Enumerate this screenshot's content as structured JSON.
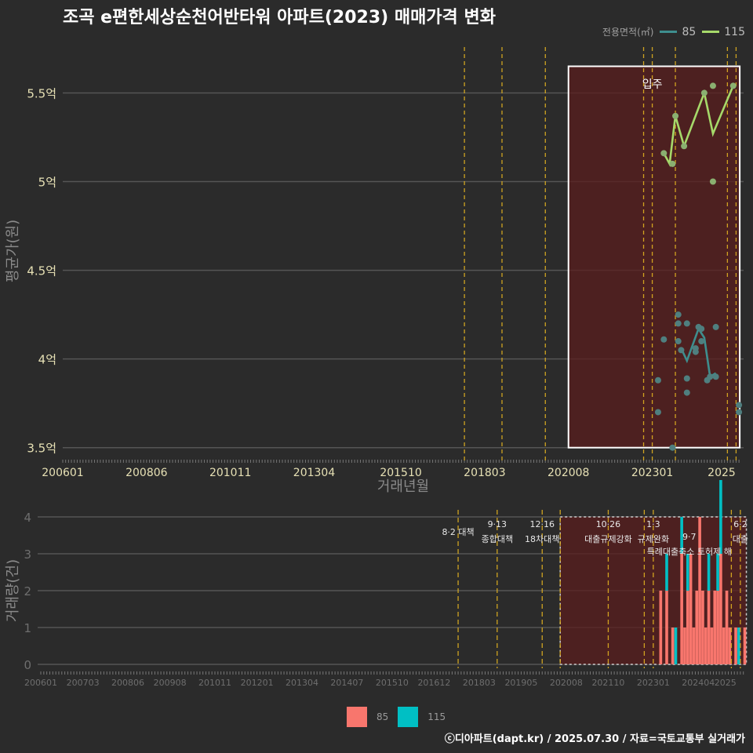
{
  "title": "조곡 e편한세상순천어반타워 아파트(2023) 매매가격 변화",
  "footer": "ⓒ디아파트(dapt.kr) / 2025.07.30 / 자료=국토교통부 실거래가",
  "colors": {
    "background": "#2b2b2b",
    "grid": "#555555",
    "tick_text_top": "#e6e0b4",
    "tick_text_bottom": "#6e6e6e",
    "axis_title": "#8a8a8a",
    "policy_line": "#e0b020",
    "shade": "#5a1e1e",
    "s85_line": "#3e8e8e",
    "s115_line": "#a6d96a",
    "s85_point": "#4f7f7f",
    "s115_point": "#8ab070",
    "bar85": "#f8766d",
    "bar115": "#00bfc4"
  },
  "chart_data": [
    {
      "type": "line",
      "name": "price",
      "xlabel": "거래년월",
      "ylabel": "평균가(원)",
      "xlim": [
        "2006-01",
        "2025-07"
      ],
      "ylim": [
        3.45,
        5.67
      ],
      "xticks": [
        "200601",
        "200806",
        "201011",
        "201304",
        "201510",
        "201803",
        "202008",
        "202301",
        "2025"
      ],
      "yticks": [
        3.5,
        4.0,
        4.5,
        5.0,
        5.5
      ],
      "ytick_labels": [
        "3.5억",
        "4억",
        "4.5억",
        "5억",
        "5.5억"
      ],
      "legend_title": "전용면적(㎡)",
      "legend_position": "top-right",
      "policy_lines": [
        "2017-08",
        "2018-09",
        "2019-12",
        "2022-10",
        "2023-01",
        "2023-09",
        "2025-03",
        "2025-06"
      ],
      "shade_box": {
        "x": [
          "2020-08",
          "2025-07"
        ],
        "y": [
          3.5,
          5.65
        ]
      },
      "annotation": {
        "text": "입주",
        "x": "2023-01",
        "y": 5.52
      },
      "series": [
        {
          "name": "115",
          "line": [
            [
              "2023-05",
              5.16
            ],
            [
              "2023-07",
              5.1
            ],
            [
              "2023-09",
              5.37
            ],
            [
              "2023-12",
              5.2
            ],
            [
              "2024-07",
              5.5
            ],
            [
              "2024-10",
              5.27
            ],
            [
              "2025-05",
              5.54
            ]
          ],
          "points": [
            [
              "2023-05",
              5.16
            ],
            [
              "2023-08",
              5.1
            ],
            [
              "2023-09",
              5.37
            ],
            [
              "2023-12",
              5.2
            ],
            [
              "2024-07",
              5.5
            ],
            [
              "2024-10",
              5.54
            ],
            [
              "2024-10",
              5.0
            ],
            [
              "2025-05",
              5.54
            ]
          ]
        },
        {
          "name": "85",
          "line": [
            [
              "2023-11",
              4.06
            ],
            [
              "2024-01",
              3.99
            ],
            [
              "2024-05",
              4.17
            ],
            [
              "2024-07",
              4.12
            ],
            [
              "2024-09",
              3.9
            ],
            [
              "2024-11",
              3.92
            ]
          ],
          "points": [
            [
              "2023-03",
              3.88
            ],
            [
              "2023-03",
              3.7
            ],
            [
              "2023-05",
              4.11
            ],
            [
              "2023-08",
              3.5
            ],
            [
              "2023-10",
              4.25
            ],
            [
              "2023-10",
              4.2
            ],
            [
              "2023-10",
              4.1
            ],
            [
              "2023-11",
              4.05
            ],
            [
              "2024-01",
              4.2
            ],
            [
              "2024-01",
              3.89
            ],
            [
              "2024-01",
              3.81
            ],
            [
              "2024-04",
              4.06
            ],
            [
              "2024-04",
              4.04
            ],
            [
              "2024-05",
              4.18
            ],
            [
              "2024-06",
              4.17
            ],
            [
              "2024-06",
              4.1
            ],
            [
              "2024-08",
              3.88
            ],
            [
              "2024-09",
              3.9
            ],
            [
              "2024-11",
              3.9
            ],
            [
              "2024-11",
              4.18
            ],
            [
              "2025-07",
              3.7
            ],
            [
              "2025-07",
              3.74
            ]
          ]
        }
      ]
    },
    {
      "type": "bar",
      "name": "volume",
      "xlabel": "",
      "ylabel": "거래량(건)",
      "xlim": [
        "2006-01",
        "2025-07"
      ],
      "ylim": [
        0,
        4
      ],
      "yticks": [
        0,
        1,
        2,
        3,
        4
      ],
      "xticks": [
        "200601",
        "200703",
        "200806",
        "200908",
        "201011",
        "201201",
        "201304",
        "201407",
        "201510",
        "201612",
        "201803",
        "201905",
        "202008",
        "202110",
        "202301",
        "202404",
        "2025"
      ],
      "policy_lines": [
        "2017-08",
        "2018-09",
        "2019-12",
        "2020-06",
        "2021-10",
        "2022-10",
        "2023-01",
        "2025-03",
        "2025-06"
      ],
      "shade_box": {
        "x": [
          "2020-06",
          "2025-07"
        ],
        "y": [
          0,
          4
        ]
      },
      "policy_labels": [
        {
          "date": "2017-08",
          "line1": "",
          "line2": "8·2 대책"
        },
        {
          "date": "2018-09",
          "line1": "9·13",
          "line2": "종합대책"
        },
        {
          "date": "2019-12",
          "line1": "12·16",
          "line2": "18차대책"
        },
        {
          "date": "2021-10",
          "line1": "10·26",
          "line2": "대출규제강화"
        },
        {
          "date": "2023-01",
          "line1": "1·3",
          "line2": "규제완화"
        },
        {
          "date": "2024-01",
          "line1": "",
          "line2": "9·7"
        },
        {
          "date": "2024-01",
          "line1": "",
          "line2": "특례대출축소 토허제 해"
        },
        {
          "date": "2025-06",
          "line1": "6·2",
          "line2": "대출"
        }
      ],
      "series": [
        {
          "name": "85",
          "bars": [
            [
              "2023-03",
              2
            ],
            [
              "2023-05",
              2
            ],
            [
              "2023-07",
              1
            ],
            [
              "2023-10",
              3
            ],
            [
              "2023-11",
              1
            ],
            [
              "2023-12",
              2
            ],
            [
              "2024-01",
              3
            ],
            [
              "2024-02",
              1
            ],
            [
              "2024-03",
              2
            ],
            [
              "2024-04",
              4
            ],
            [
              "2024-05",
              2
            ],
            [
              "2024-06",
              1
            ],
            [
              "2024-07",
              2
            ],
            [
              "2024-08",
              1
            ],
            [
              "2024-09",
              2
            ],
            [
              "2024-10",
              2
            ],
            [
              "2024-11",
              3
            ],
            [
              "2024-12",
              1
            ],
            [
              "2025-01",
              2
            ],
            [
              "2025-02",
              1
            ],
            [
              "2025-04",
              1
            ],
            [
              "2025-07",
              1
            ]
          ]
        },
        {
          "name": "115",
          "bars": [
            [
              "2023-05",
              1
            ],
            [
              "2023-08",
              1
            ],
            [
              "2023-10",
              1
            ],
            [
              "2023-12",
              1
            ],
            [
              "2024-07",
              1
            ],
            [
              "2024-10",
              1
            ],
            [
              "2024-11",
              2
            ],
            [
              "2025-05",
              1
            ]
          ]
        }
      ]
    }
  ]
}
